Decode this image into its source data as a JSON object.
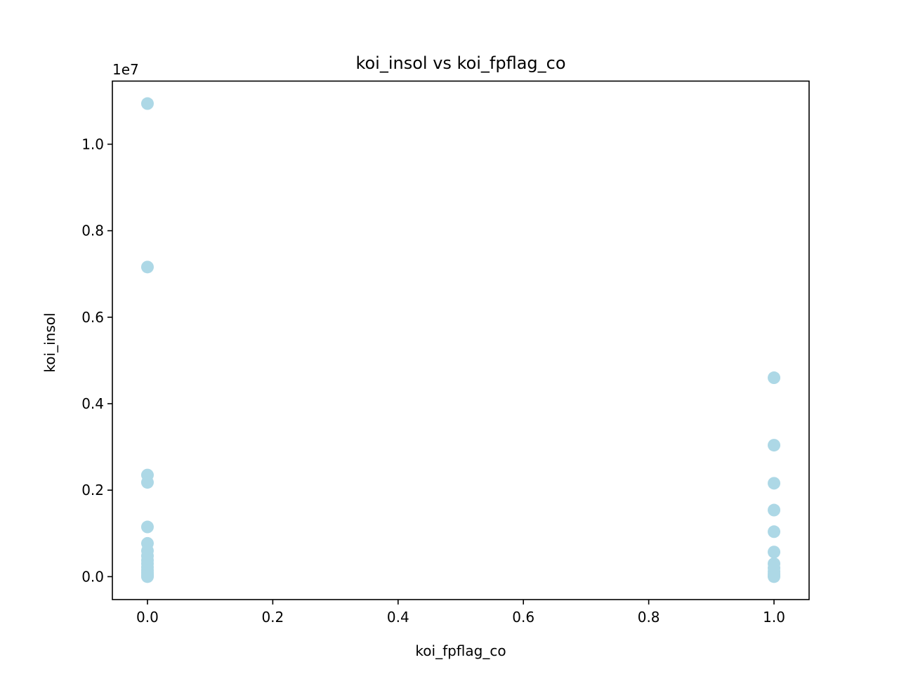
{
  "chart_data": {
    "type": "scatter",
    "title": "koi_insol vs koi_fpflag_co",
    "xlabel": "koi_fpflag_co",
    "ylabel": "koi_insol",
    "y_offset_label": "1e7",
    "y_scale_factor": 10000000,
    "xlim": [
      -0.056,
      1.056
    ],
    "ylim": [
      -0.053,
      1.146
    ],
    "x_ticks": [
      0.0,
      0.2,
      0.4,
      0.6,
      0.8,
      1.0
    ],
    "x_tick_labels": [
      "0.0",
      "0.2",
      "0.4",
      "0.6",
      "0.8",
      "1.0"
    ],
    "y_ticks": [
      0.0,
      0.2,
      0.4,
      0.6,
      0.8,
      1.0
    ],
    "y_tick_labels": [
      "0.0",
      "0.2",
      "0.4",
      "0.6",
      "0.8",
      "1.0"
    ],
    "grid": false,
    "marker_color": "#add8e6",
    "points": [
      {
        "x": 0,
        "y": 1.094
      },
      {
        "x": 0,
        "y": 0.716
      },
      {
        "x": 0,
        "y": 0.235
      },
      {
        "x": 0,
        "y": 0.218
      },
      {
        "x": 0,
        "y": 0.115
      },
      {
        "x": 0,
        "y": 0.077
      },
      {
        "x": 0,
        "y": 0.06
      },
      {
        "x": 0,
        "y": 0.048
      },
      {
        "x": 0,
        "y": 0.038
      },
      {
        "x": 0,
        "y": 0.03
      },
      {
        "x": 0,
        "y": 0.022
      },
      {
        "x": 0,
        "y": 0.015
      },
      {
        "x": 0,
        "y": 0.01
      },
      {
        "x": 0,
        "y": 0.006
      },
      {
        "x": 0,
        "y": 0.003
      },
      {
        "x": 0,
        "y": 0.001
      },
      {
        "x": 0,
        "y": 0.0
      },
      {
        "x": 1,
        "y": 0.46
      },
      {
        "x": 1,
        "y": 0.304
      },
      {
        "x": 1,
        "y": 0.216
      },
      {
        "x": 1,
        "y": 0.154
      },
      {
        "x": 1,
        "y": 0.104
      },
      {
        "x": 1,
        "y": 0.057
      },
      {
        "x": 1,
        "y": 0.03
      },
      {
        "x": 1,
        "y": 0.02
      },
      {
        "x": 1,
        "y": 0.012
      },
      {
        "x": 1,
        "y": 0.006
      },
      {
        "x": 1,
        "y": 0.002
      },
      {
        "x": 1,
        "y": 0.0
      }
    ]
  }
}
